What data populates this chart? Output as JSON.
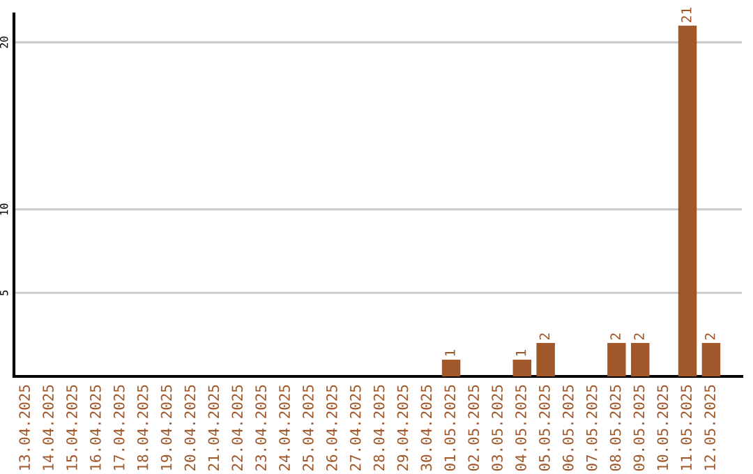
{
  "chart_data": {
    "type": "bar",
    "categories": [
      "13.04.2025",
      "14.04.2025",
      "15.04.2025",
      "16.04.2025",
      "17.04.2025",
      "18.04.2025",
      "19.04.2025",
      "20.04.2025",
      "21.04.2025",
      "22.04.2025",
      "23.04.2025",
      "24.04.2025",
      "25.04.2025",
      "26.04.2025",
      "27.04.2025",
      "28.04.2025",
      "29.04.2025",
      "30.04.2025",
      "01.05.2025",
      "02.05.2025",
      "03.05.2025",
      "04.05.2025",
      "05.05.2025",
      "06.05.2025",
      "07.05.2025",
      "08.05.2025",
      "09.05.2025",
      "10.05.2025",
      "11.05.2025",
      "12.05.2025"
    ],
    "values": [
      0,
      0,
      0,
      0,
      0,
      0,
      0,
      0,
      0,
      0,
      0,
      0,
      0,
      0,
      0,
      0,
      0,
      0,
      1,
      0,
      0,
      1,
      2,
      0,
      0,
      2,
      2,
      0,
      21,
      2
    ],
    "value_labels": [
      null,
      null,
      null,
      null,
      null,
      null,
      null,
      null,
      null,
      null,
      null,
      null,
      null,
      null,
      null,
      null,
      null,
      null,
      "1",
      null,
      null,
      "1",
      "2",
      null,
      null,
      "2",
      "2",
      null,
      "21",
      "2"
    ],
    "color": "#a0582a",
    "ylim": [
      0,
      21.7
    ],
    "yticks": [
      5,
      10,
      20
    ],
    "grid": "y",
    "legend": false
  }
}
